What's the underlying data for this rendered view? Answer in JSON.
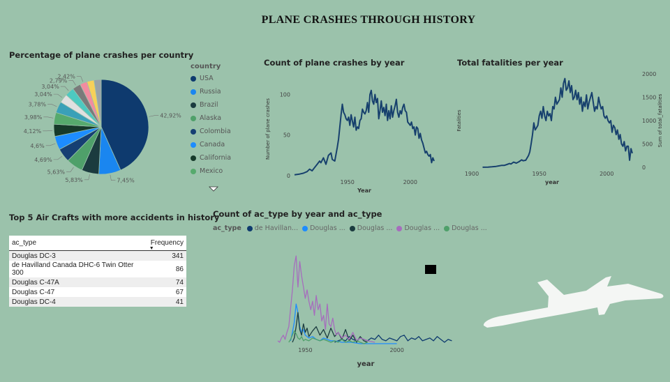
{
  "page_title": "PLANE CRASHES THROUGH HISTORY",
  "pie": {
    "title": "Percentage of plane crashes per country",
    "legend_title": "country",
    "legend": [
      {
        "label": "USA",
        "color": "#0e3a6e"
      },
      {
        "label": "Russia",
        "color": "#1a86f0"
      },
      {
        "label": "Brazil",
        "color": "#1b3b3f"
      },
      {
        "label": "Alaska",
        "color": "#4fa06a"
      },
      {
        "label": "Colombia",
        "color": "#163f73"
      },
      {
        "label": "Canada",
        "color": "#1d8cff"
      },
      {
        "label": "California",
        "color": "#163a2a"
      },
      {
        "label": "Mexico",
        "color": "#56aa6d"
      }
    ]
  },
  "line1": {
    "title": "Count of plane crashes by year",
    "xlabel": "Year",
    "ylabel": "Number of plane crashes"
  },
  "line2": {
    "title": "Total fatalities per year",
    "xlabel": "year",
    "ylabel": "Fatalities",
    "ylabel_right": "Sum of total_fatalities"
  },
  "table": {
    "title": "Top 5 Air Crafts with more accidents in history",
    "col1": "ac_type",
    "col2": "Frequency",
    "rows": [
      {
        "ac_type": "Douglas DC-3",
        "freq": "341"
      },
      {
        "ac_type": "de Havilland Canada DHC-6 Twin Otter 300",
        "freq": "86"
      },
      {
        "ac_type": "Douglas C-47A",
        "freq": "74"
      },
      {
        "ac_type": "Douglas C-47",
        "freq": "67"
      },
      {
        "ac_type": "Douglas DC-4",
        "freq": "41"
      }
    ]
  },
  "ctype": {
    "title": "Count of ac_type by year and ac_type",
    "legend_title": "ac_type",
    "legend": [
      {
        "label": "de Havillan...",
        "color": "#0e3a6e"
      },
      {
        "label": "Douglas ...",
        "color": "#1d8cff"
      },
      {
        "label": "Douglas ...",
        "color": "#1b3b3f"
      },
      {
        "label": "Douglas ...",
        "color": "#a66dbd"
      },
      {
        "label": "Douglas ...",
        "color": "#4fa06a"
      }
    ],
    "xlabel": "year"
  },
  "chart_data": [
    {
      "type": "pie",
      "title": "Percentage of plane crashes per country",
      "slices": [
        {
          "label": "USA",
          "value": 42.92,
          "text": "42,92%",
          "color": "#0e3a6e"
        },
        {
          "label": "Russia",
          "value": 7.45,
          "text": "7,45%",
          "color": "#1a86f0"
        },
        {
          "label": "Brazil",
          "value": 5.83,
          "text": "5,83%",
          "color": "#1b3b3f"
        },
        {
          "label": "Alaska",
          "value": 5.63,
          "text": "5,63%",
          "color": "#4fa06a"
        },
        {
          "label": "Colombia",
          "value": 4.69,
          "text": "4,69%",
          "color": "#163f73"
        },
        {
          "label": "Canada",
          "value": 4.6,
          "text": "4,6%",
          "color": "#1d8cff"
        },
        {
          "label": "California",
          "value": 4.12,
          "text": "4,12%",
          "color": "#163a2a"
        },
        {
          "label": "Mexico",
          "value": 3.98,
          "text": "3,98%",
          "color": "#56aa6d"
        },
        {
          "label": "",
          "value": 3.78,
          "text": "3,78%",
          "color": "#3aa0b8"
        },
        {
          "label": "",
          "value": 3.04,
          "text": "3,04%",
          "color": "#e0e0e0"
        },
        {
          "label": "",
          "value": 3.04,
          "text": "3,04%",
          "color": "#4dc9c0"
        },
        {
          "label": "",
          "value": 2.79,
          "text": "2,79%",
          "color": "#7a7a7a"
        },
        {
          "label": "",
          "value": 2.42,
          "text": "2,42%",
          "color": "#f28ca0"
        },
        {
          "label": "",
          "value": 2.42,
          "text": "",
          "color": "#f7d05a"
        },
        {
          "label": "",
          "value": 2.42,
          "text": "",
          "color": "#9aa3a8"
        }
      ]
    },
    {
      "type": "line",
      "title": "Count of plane crashes by year",
      "xlabel": "Year",
      "ylabel": "Number of plane crashes",
      "xlim": [
        1908,
        2019
      ],
      "ylim": [
        0,
        115
      ],
      "xticks": [
        1950,
        2000
      ],
      "yticks": [
        0,
        50,
        100
      ],
      "x": [
        1908,
        1912,
        1915,
        1918,
        1920,
        1922,
        1924,
        1926,
        1928,
        1929,
        1931,
        1933,
        1935,
        1937,
        1938,
        1940,
        1942,
        1943,
        1944,
        1945,
        1946,
        1947,
        1948,
        1949,
        1950,
        1951,
        1952,
        1953,
        1954,
        1955,
        1956,
        1957,
        1958,
        1959,
        1960,
        1961,
        1962,
        1963,
        1964,
        1965,
        1966,
        1967,
        1968,
        1969,
        1970,
        1971,
        1972,
        1973,
        1974,
        1975,
        1976,
        1977,
        1978,
        1979,
        1980,
        1981,
        1982,
        1983,
        1984,
        1985,
        1986,
        1987,
        1988,
        1989,
        1990,
        1991,
        1992,
        1993,
        1994,
        1995,
        1996,
        1997,
        1998,
        1999,
        2000,
        2001,
        2002,
        2003,
        2004,
        2005,
        2006,
        2007,
        2008,
        2009,
        2010,
        2011,
        2012,
        2013,
        2014,
        2015,
        2016,
        2017,
        2018,
        2019
      ],
      "y": [
        1,
        2,
        3,
        5,
        8,
        6,
        10,
        14,
        18,
        16,
        22,
        14,
        25,
        28,
        20,
        18,
        35,
        45,
        60,
        75,
        88,
        78,
        75,
        70,
        68,
        72,
        62,
        75,
        67,
        60,
        72,
        56,
        60,
        58,
        68,
        70,
        82,
        78,
        76,
        80,
        90,
        78,
        100,
        105,
        92,
        88,
        100,
        90,
        95,
        70,
        80,
        92,
        78,
        84,
        74,
        88,
        68,
        80,
        70,
        86,
        72,
        80,
        86,
        94,
        78,
        72,
        80,
        76,
        84,
        88,
        80,
        78,
        66,
        64,
        62,
        66,
        58,
        60,
        50,
        60,
        58,
        46,
        52,
        44,
        40,
        34,
        28,
        30,
        26,
        24,
        26,
        16,
        22,
        18
      ]
    },
    {
      "type": "line",
      "title": "Total fatalities per year",
      "xlabel": "year",
      "ylabel": "Fatalities",
      "ylabel_right": "Sum of total_fatalities",
      "xlim": [
        1900,
        2019
      ],
      "ylim": [
        0,
        2000
      ],
      "xticks": [
        1900,
        1950,
        2000
      ],
      "yticks": [
        0,
        500,
        1000,
        1500,
        2000
      ],
      "x": [
        1908,
        1912,
        1915,
        1918,
        1920,
        1922,
        1924,
        1926,
        1928,
        1929,
        1931,
        1933,
        1935,
        1937,
        1938,
        1940,
        1942,
        1943,
        1944,
        1945,
        1946,
        1947,
        1948,
        1949,
        1950,
        1951,
        1952,
        1953,
        1954,
        1955,
        1956,
        1957,
        1958,
        1959,
        1960,
        1961,
        1962,
        1963,
        1964,
        1965,
        1966,
        1967,
        1968,
        1969,
        1970,
        1971,
        1972,
        1973,
        1974,
        1975,
        1976,
        1977,
        1978,
        1979,
        1980,
        1981,
        1982,
        1983,
        1984,
        1985,
        1986,
        1987,
        1988,
        1989,
        1990,
        1991,
        1992,
        1993,
        1994,
        1995,
        1996,
        1997,
        1998,
        1999,
        2000,
        2001,
        2002,
        2003,
        2004,
        2005,
        2006,
        2007,
        2008,
        2009,
        2010,
        2011,
        2012,
        2013,
        2014,
        2015,
        2016,
        2017,
        2018,
        2019
      ],
      "y": [
        1,
        5,
        10,
        20,
        30,
        40,
        40,
        60,
        80,
        70,
        110,
        90,
        120,
        160,
        140,
        150,
        250,
        330,
        500,
        700,
        950,
        800,
        850,
        900,
        1100,
        1200,
        1050,
        1300,
        1100,
        1000,
        1200,
        1100,
        1150,
        1000,
        1300,
        1250,
        1500,
        1350,
        1400,
        1450,
        1700,
        1500,
        1800,
        1900,
        1650,
        1700,
        1850,
        1600,
        1750,
        1450,
        1500,
        1650,
        1450,
        1600,
        1350,
        1500,
        1200,
        1400,
        1300,
        1550,
        1250,
        1400,
        1500,
        1600,
        1400,
        1200,
        1300,
        1250,
        1500,
        1350,
        1250,
        1300,
        1100,
        1050,
        1100,
        1000,
        950,
        1000,
        750,
        900,
        850,
        700,
        800,
        600,
        700,
        500,
        450,
        550,
        350,
        450,
        450,
        150,
        400,
        300
      ]
    },
    {
      "type": "line",
      "title": "Count of ac_type by year and ac_type",
      "xlabel": "year",
      "xlim": [
        1935,
        2031
      ],
      "ylim": [
        0,
        64
      ],
      "xticks": [
        1950,
        2000
      ],
      "series": [
        {
          "name": "de Havillan...",
          "color": "#0e3a6e",
          "x": [
            1966,
            1968,
            1970,
            1972,
            1974,
            1976,
            1978,
            1980,
            1982,
            1984,
            1986,
            1988,
            1990,
            1992,
            1994,
            1996,
            1998,
            2000,
            2002,
            2004,
            2006,
            2008,
            2010,
            2012,
            2014,
            2016,
            2018,
            2020,
            2022,
            2024,
            2026,
            2028,
            2030
          ],
          "y": [
            1,
            2,
            3,
            2,
            5,
            3,
            2,
            4,
            3,
            2,
            4,
            3,
            6,
            3,
            2,
            4,
            3,
            2,
            5,
            6,
            2,
            4,
            3,
            5,
            2,
            3,
            4,
            2,
            5,
            3,
            1,
            3,
            2
          ]
        },
        {
          "name": "Douglas ...",
          "color": "#1d8cff",
          "x": [
            1942,
            1943,
            1944,
            1945,
            1946,
            1947,
            1948,
            1949,
            1950,
            1952,
            1954,
            1956,
            1958,
            1960,
            1962,
            1964,
            1966,
            1970,
            1975,
            1980,
            1990,
            2000
          ],
          "y": [
            2,
            8,
            15,
            28,
            22,
            12,
            8,
            10,
            6,
            4,
            5,
            3,
            2,
            4,
            3,
            2,
            2,
            1,
            1,
            0,
            0,
            0
          ]
        },
        {
          "name": "Douglas ...",
          "color": "#1b3b3f",
          "x": [
            1943,
            1944,
            1945,
            1946,
            1947,
            1948,
            1949,
            1950,
            1951,
            1952,
            1954,
            1956,
            1958,
            1960,
            1962,
            1964,
            1966,
            1968,
            1970,
            1972,
            1974,
            1976,
            1978,
            1980,
            1982,
            1984
          ],
          "y": [
            1,
            4,
            12,
            22,
            10,
            6,
            14,
            8,
            11,
            5,
            9,
            12,
            6,
            10,
            4,
            11,
            5,
            8,
            3,
            10,
            2,
            6,
            1,
            5,
            2,
            1
          ]
        },
        {
          "name": "Douglas ...",
          "color": "#a66dbd",
          "x": [
            1935,
            1936,
            1937,
            1938,
            1939,
            1940,
            1941,
            1942,
            1943,
            1944,
            1945,
            1946,
            1947,
            1948,
            1949,
            1950,
            1951,
            1952,
            1953,
            1954,
            1955,
            1956,
            1957,
            1958,
            1959,
            1960,
            1961,
            1962,
            1963,
            1964,
            1965,
            1966,
            1967,
            1968,
            1970,
            1972,
            1974,
            1976,
            1978,
            1980,
            1984,
            1988
          ],
          "y": [
            2,
            1,
            4,
            6,
            3,
            8,
            12,
            25,
            38,
            55,
            62,
            40,
            58,
            48,
            40,
            32,
            38,
            30,
            24,
            30,
            20,
            34,
            24,
            28,
            16,
            20,
            10,
            28,
            14,
            12,
            18,
            10,
            6,
            8,
            4,
            6,
            3,
            8,
            2,
            4,
            2,
            1
          ]
        },
        {
          "name": "Douglas ...",
          "color": "#4fa06a",
          "x": [
            1941,
            1942,
            1943,
            1944,
            1945,
            1946,
            1947,
            1948,
            1949,
            1950,
            1952,
            1954,
            1956,
            1958,
            1960,
            1962,
            1964,
            1966,
            1968,
            1970,
            1972,
            1974,
            1976,
            1978,
            1980,
            1982,
            1984
          ],
          "y": [
            1,
            3,
            6,
            9,
            7,
            4,
            3,
            5,
            2,
            3,
            2,
            4,
            3,
            2,
            3,
            2,
            1,
            2,
            1,
            3,
            1,
            2,
            1,
            2,
            1,
            0,
            1
          ]
        }
      ]
    }
  ]
}
